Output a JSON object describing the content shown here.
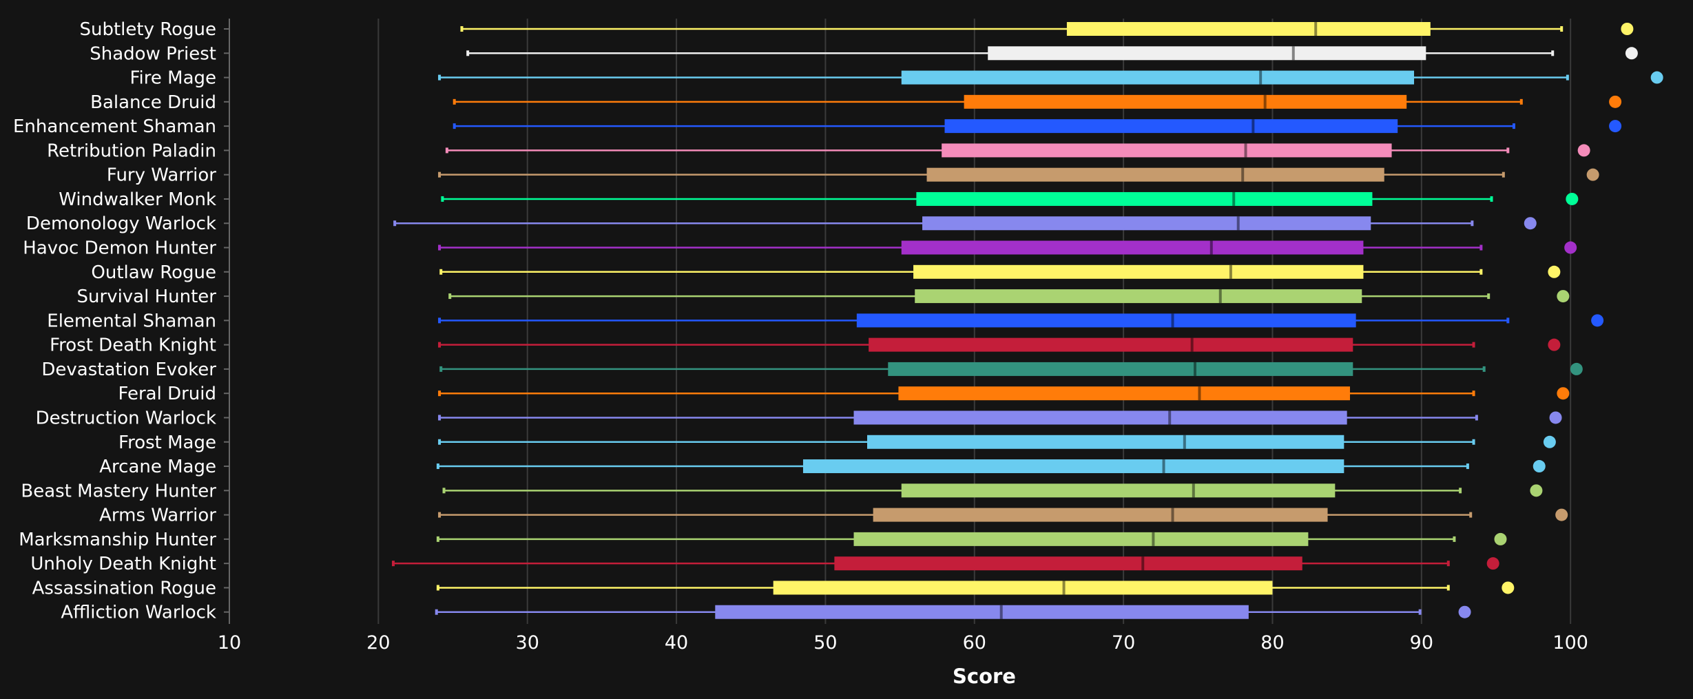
{
  "chart_data": {
    "type": "boxplot",
    "xlabel": "Score",
    "xlim": [
      10,
      106
    ],
    "xticks": [
      10,
      20,
      30,
      40,
      50,
      60,
      70,
      80,
      90,
      100
    ],
    "grid": "vertical",
    "categories": [
      "Subtlety Rogue",
      "Shadow Priest",
      "Fire Mage",
      "Balance Druid",
      "Enhancement Shaman",
      "Retribution Paladin",
      "Fury Warrior",
      "Windwalker Monk",
      "Demonology Warlock",
      "Havoc Demon Hunter",
      "Outlaw Rogue",
      "Survival Hunter",
      "Elemental Shaman",
      "Frost Death Knight",
      "Devastation Evoker",
      "Feral Druid",
      "Destruction Warlock",
      "Frost Mage",
      "Arcane Mage",
      "Beast Mastery Hunter",
      "Arms Warrior",
      "Marksmanship Hunter",
      "Unholy Death Knight",
      "Assassination Rogue",
      "Affliction Warlock"
    ],
    "boxes": [
      {
        "min": 25.6,
        "q1": 66.2,
        "median": 82.9,
        "q3": 90.6,
        "max": 99.4,
        "outlier": 103.8,
        "color": "#FFF468"
      },
      {
        "min": 26.0,
        "q1": 60.9,
        "median": 81.4,
        "q3": 90.3,
        "max": 98.8,
        "outlier": 104.1,
        "color": "#F0F0F0"
      },
      {
        "min": 24.1,
        "q1": 55.1,
        "median": 79.2,
        "q3": 89.5,
        "max": 99.8,
        "outlier": 105.8,
        "color": "#69CCF0"
      },
      {
        "min": 25.1,
        "q1": 59.3,
        "median": 79.5,
        "q3": 89.0,
        "max": 96.7,
        "outlier": 103.0,
        "color": "#FF7C0A"
      },
      {
        "min": 25.1,
        "q1": 58.0,
        "median": 78.7,
        "q3": 88.4,
        "max": 96.2,
        "outlier": 103.0,
        "color": "#2459FF"
      },
      {
        "min": 24.6,
        "q1": 57.8,
        "median": 78.2,
        "q3": 88.0,
        "max": 95.8,
        "outlier": 100.9,
        "color": "#F48CBA"
      },
      {
        "min": 24.1,
        "q1": 56.8,
        "median": 78.0,
        "q3": 87.5,
        "max": 95.5,
        "outlier": 101.5,
        "color": "#C69B6D"
      },
      {
        "min": 24.3,
        "q1": 56.1,
        "median": 77.4,
        "q3": 86.7,
        "max": 94.7,
        "outlier": 100.1,
        "color": "#00FF98"
      },
      {
        "min": 21.1,
        "q1": 56.5,
        "median": 77.7,
        "q3": 86.6,
        "max": 93.4,
        "outlier": 97.3,
        "color": "#8788EE"
      },
      {
        "min": 24.1,
        "q1": 55.1,
        "median": 75.9,
        "q3": 86.1,
        "max": 94.0,
        "outlier": 100.0,
        "color": "#A330C9"
      },
      {
        "min": 24.2,
        "q1": 55.9,
        "median": 77.2,
        "q3": 86.1,
        "max": 94.0,
        "outlier": 98.9,
        "color": "#FFF468"
      },
      {
        "min": 24.8,
        "q1": 56.0,
        "median": 76.5,
        "q3": 86.0,
        "max": 94.5,
        "outlier": 99.5,
        "color": "#AAD372"
      },
      {
        "min": 24.1,
        "q1": 52.1,
        "median": 73.3,
        "q3": 85.6,
        "max": 95.8,
        "outlier": 101.8,
        "color": "#2459FF"
      },
      {
        "min": 24.1,
        "q1": 52.9,
        "median": 74.6,
        "q3": 85.4,
        "max": 93.5,
        "outlier": 98.9,
        "color": "#C41E3A"
      },
      {
        "min": 24.2,
        "q1": 54.2,
        "median": 74.8,
        "q3": 85.4,
        "max": 94.2,
        "outlier": 100.4,
        "color": "#33937F"
      },
      {
        "min": 24.1,
        "q1": 54.9,
        "median": 75.1,
        "q3": 85.2,
        "max": 93.5,
        "outlier": 99.5,
        "color": "#FF7C0A"
      },
      {
        "min": 24.1,
        "q1": 51.9,
        "median": 73.1,
        "q3": 85.0,
        "max": 93.7,
        "outlier": 99.0,
        "color": "#8788EE"
      },
      {
        "min": 24.1,
        "q1": 52.8,
        "median": 74.1,
        "q3": 84.8,
        "max": 93.5,
        "outlier": 98.6,
        "color": "#69CCF0"
      },
      {
        "min": 24.0,
        "q1": 48.5,
        "median": 72.7,
        "q3": 84.8,
        "max": 93.1,
        "outlier": 97.9,
        "color": "#69CCF0"
      },
      {
        "min": 24.4,
        "q1": 55.1,
        "median": 74.7,
        "q3": 84.2,
        "max": 92.6,
        "outlier": 97.7,
        "color": "#AAD372"
      },
      {
        "min": 24.1,
        "q1": 53.2,
        "median": 73.3,
        "q3": 83.7,
        "max": 93.3,
        "outlier": 99.4,
        "color": "#C69B6D"
      },
      {
        "min": 24.0,
        "q1": 51.9,
        "median": 72.0,
        "q3": 82.4,
        "max": 92.2,
        "outlier": 95.3,
        "color": "#AAD372"
      },
      {
        "min": 21.0,
        "q1": 50.6,
        "median": 71.3,
        "q3": 82.0,
        "max": 91.8,
        "outlier": 94.8,
        "color": "#C41E3A"
      },
      {
        "min": 24.0,
        "q1": 46.5,
        "median": 66.0,
        "q3": 80.0,
        "max": 91.8,
        "outlier": 95.8,
        "color": "#FFF468"
      },
      {
        "min": 23.9,
        "q1": 42.6,
        "median": 61.8,
        "q3": 78.4,
        "max": 89.9,
        "outlier": 92.9,
        "color": "#8788EE"
      }
    ]
  }
}
